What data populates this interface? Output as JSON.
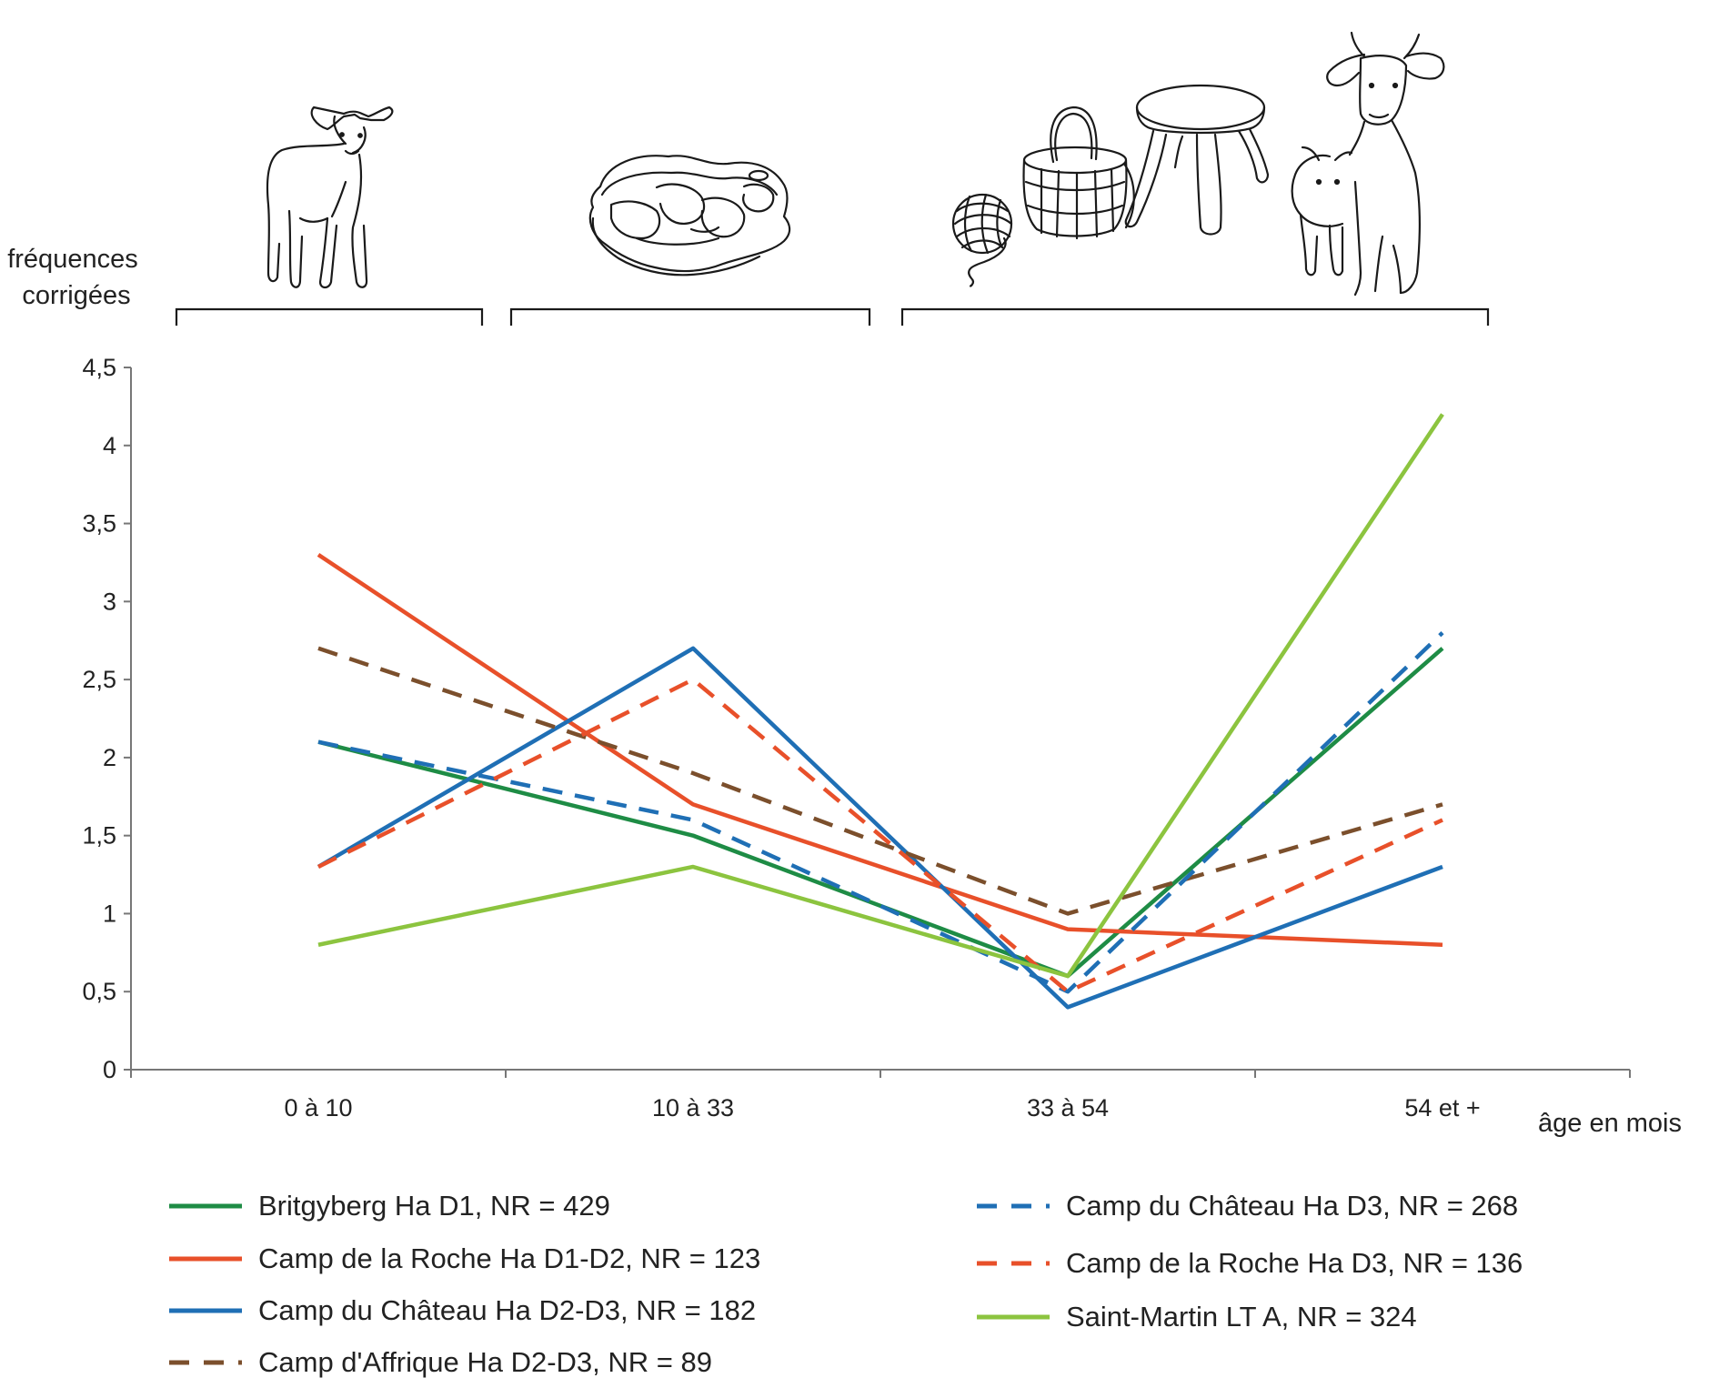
{
  "chart_data": {
    "type": "line",
    "ylabel": "fréquences corrigées",
    "xlabel": "âge en mois",
    "categories": [
      "0 à 10",
      "10 à 33",
      "33 à 54",
      "54 et +"
    ],
    "ylim": [
      0,
      4.5
    ],
    "yticks": [
      "0",
      "0,5",
      "1",
      "1,5",
      "2",
      "2,5",
      "3",
      "3,5",
      "4",
      "4,5"
    ],
    "grid": false,
    "legend_position": "bottom",
    "series": [
      {
        "name": "Britgyberg Ha D1, NR = 429",
        "values": [
          2.1,
          1.5,
          0.6,
          2.7
        ],
        "color": "#1e8c45",
        "dashed": false
      },
      {
        "name": "Camp de la Roche Ha D1-D2, NR = 123",
        "values": [
          3.3,
          1.7,
          0.9,
          0.8
        ],
        "color": "#e8502a",
        "dashed": false
      },
      {
        "name": "Camp du Château Ha D2-D3, NR = 182",
        "values": [
          1.3,
          2.7,
          0.4,
          1.3
        ],
        "color": "#1f6fb5",
        "dashed": false
      },
      {
        "name": "Camp d'Affrique Ha D2-D3, NR = 89",
        "values": [
          2.7,
          1.9,
          1.0,
          1.7
        ],
        "color": "#7b4f2c",
        "dashed": true
      },
      {
        "name": "Camp du Château Ha D3, NR = 268",
        "values": [
          2.1,
          1.6,
          0.5,
          2.8
        ],
        "color": "#1f6fb5",
        "dashed": true
      },
      {
        "name": "Camp de la Roche Ha D3, NR = 136",
        "values": [
          1.3,
          2.5,
          0.5,
          1.6
        ],
        "color": "#e8502a",
        "dashed": true
      },
      {
        "name": "Saint-Martin LT A, NR = 324",
        "values": [
          0.8,
          1.3,
          0.6,
          4.2
        ],
        "color": "#8cc43f",
        "dashed": false
      }
    ],
    "illustrations": [
      "lamb-icon",
      "meat-cut-icon",
      "yarn-ball-icon",
      "basket-icon",
      "stool-icon",
      "goat-with-kid-icon"
    ]
  }
}
